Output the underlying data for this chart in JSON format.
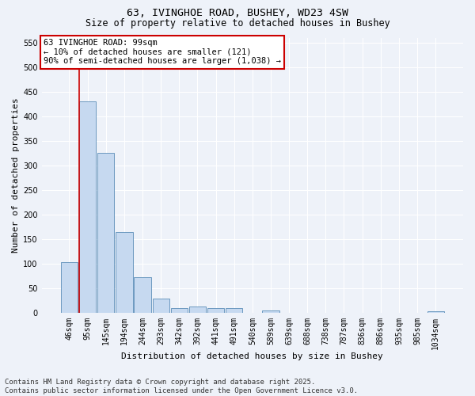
{
  "title_line1": "63, IVINGHOE ROAD, BUSHEY, WD23 4SW",
  "title_line2": "Size of property relative to detached houses in Bushey",
  "xlabel": "Distribution of detached houses by size in Bushey",
  "ylabel": "Number of detached properties",
  "categories": [
    "46sqm",
    "95sqm",
    "145sqm",
    "194sqm",
    "244sqm",
    "293sqm",
    "342sqm",
    "392sqm",
    "441sqm",
    "491sqm",
    "540sqm",
    "589sqm",
    "639sqm",
    "688sqm",
    "738sqm",
    "787sqm",
    "836sqm",
    "886sqm",
    "935sqm",
    "985sqm",
    "1034sqm"
  ],
  "values": [
    103,
    430,
    325,
    165,
    73,
    28,
    10,
    13,
    10,
    9,
    0,
    5,
    0,
    0,
    0,
    0,
    0,
    0,
    0,
    0,
    3
  ],
  "bar_color": "#c6d9f0",
  "bar_edge_color": "#5b8db8",
  "highlight_bar_index": 1,
  "highlight_line_color": "#cc0000",
  "annotation_text": "63 IVINGHOE ROAD: 99sqm\n← 10% of detached houses are smaller (121)\n90% of semi-detached houses are larger (1,038) →",
  "annotation_box_color": "#cc0000",
  "ylim": [
    0,
    560
  ],
  "yticks": [
    0,
    50,
    100,
    150,
    200,
    250,
    300,
    350,
    400,
    450,
    500,
    550
  ],
  "footer_line1": "Contains HM Land Registry data © Crown copyright and database right 2025.",
  "footer_line2": "Contains public sector information licensed under the Open Government Licence v3.0.",
  "bg_color": "#eef2f9",
  "plot_bg_color": "#eef2f9",
  "grid_color": "#ffffff",
  "title_fontsize": 9.5,
  "subtitle_fontsize": 8.5,
  "axis_label_fontsize": 8,
  "tick_fontsize": 7,
  "annotation_fontsize": 7.5,
  "footer_fontsize": 6.5
}
